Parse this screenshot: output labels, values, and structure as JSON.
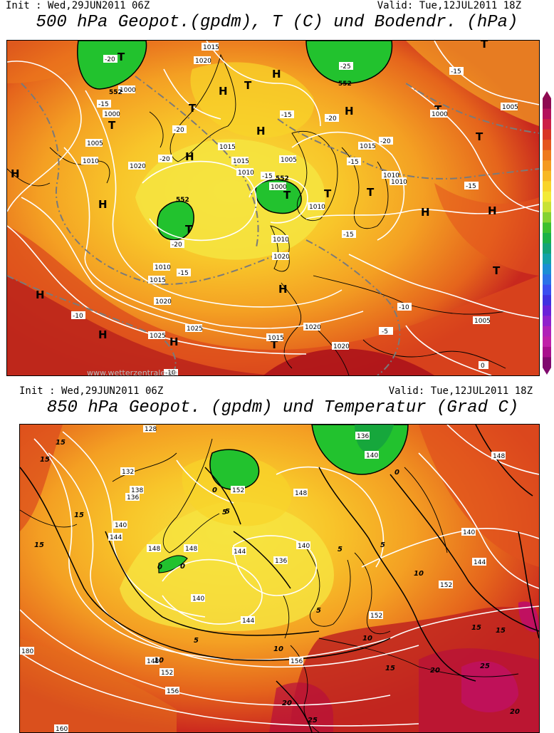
{
  "top": {
    "init": "Init : Wed,29JUN2011 06Z",
    "valid": "Valid: Tue,12JUL2011 18Z",
    "title": "500 hPa Geopot.(gpdm), T (C) und Bodendr. (hPa)",
    "watermark": "www.wetterzentrale.de",
    "pressure_labels": [
      "1015",
      "1020",
      "1005",
      "1010",
      "1000",
      "1020",
      "1015",
      "1010",
      "1005",
      "1010",
      "1000",
      "1010",
      "1020",
      "1015",
      "1010",
      "1015",
      "1020",
      "1025",
      "1025",
      "1020",
      "1015",
      "1020",
      "1005",
      "1010",
      "1010",
      "1005",
      "1000",
      "1015",
      "1000"
    ],
    "temp_labels": [
      "-20",
      "-15",
      "-20",
      "-20",
      "-25",
      "-15",
      "-20",
      "-15",
      "-20",
      "-15",
      "-15",
      "-20",
      "-15",
      "-15",
      "-10",
      "-10",
      "-5",
      "0",
      "-15",
      "-10"
    ],
    "geopot_labels": [
      "552",
      "552",
      "552",
      "552"
    ],
    "H_labels": [
      "H",
      "H",
      "H",
      "H",
      "H",
      "H",
      "H",
      "H",
      "H",
      "H",
      "H",
      "H",
      "H"
    ],
    "T_labels": [
      "T",
      "T",
      "T",
      "T",
      "T",
      "T",
      "T",
      "T",
      "T",
      "T",
      "T",
      "T",
      "T"
    ]
  },
  "bottom": {
    "init": "Init : Wed,29JUN2011 06Z",
    "valid": "Valid: Tue,12JUL2011 18Z",
    "title": "850 hPa Geopot. (gpdm) und Temperatur (Grad C)",
    "geopot_labels": [
      "128",
      "132",
      "136",
      "138",
      "140",
      "144",
      "148",
      "152",
      "148",
      "140",
      "140",
      "144",
      "136",
      "148",
      "152",
      "144",
      "152",
      "156",
      "148",
      "152",
      "156",
      "160",
      "180",
      "140",
      "144",
      "136",
      "140",
      "148"
    ],
    "temp_labels": [
      "15",
      "15",
      "15",
      "15",
      "10",
      "5",
      "5",
      "5",
      "0",
      "0",
      "0",
      "5",
      "5",
      "10",
      "10",
      "10",
      "15",
      "15",
      "15",
      "20",
      "20",
      "20",
      "25",
      "25",
      "0",
      "5"
    ]
  },
  "colors": {
    "deep_red": "#a80d1a",
    "red": "#c8281e",
    "orange_red": "#dc4a1c",
    "orange": "#ec7a1c",
    "light_orange": "#f4a023",
    "yellow_orange": "#f8c62a",
    "yellow": "#f6e440",
    "green": "#22c22e",
    "magenta": "#c01060"
  },
  "scale_colors": [
    "#8e0a52",
    "#b3125c",
    "#cc1f46",
    "#d83626",
    "#e4561e",
    "#ee7a1c",
    "#f49a20",
    "#f7b824",
    "#f8d42a",
    "#f2ea36",
    "#c8e234",
    "#84d232",
    "#3cc030",
    "#1ab248",
    "#12a478",
    "#12a2a8",
    "#1a8ed4",
    "#2a72e8",
    "#3a4ef0",
    "#4030e0",
    "#6a20d8",
    "#9020cc",
    "#b020b8",
    "#c020a8",
    "#a8108c",
    "#800a6e"
  ]
}
